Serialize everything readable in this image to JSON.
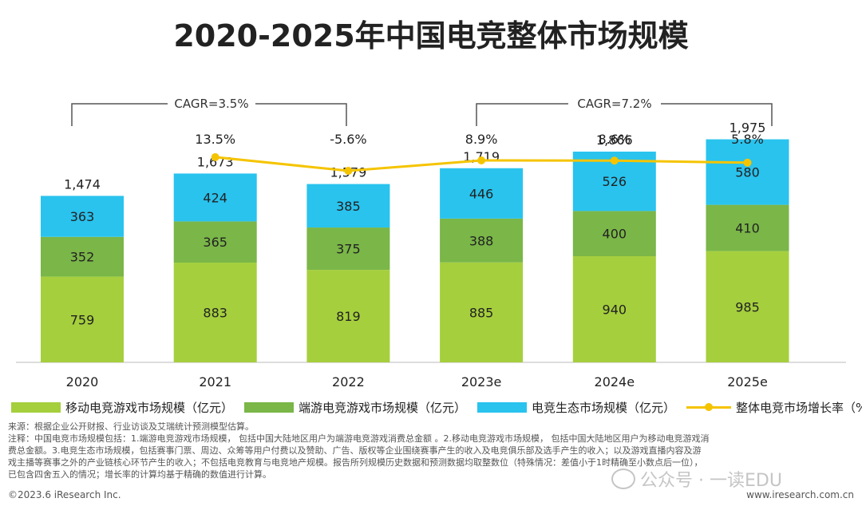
{
  "title": "2020-2025年中国电竞整体市场规模",
  "cagr_left": "CAGR=3.5%",
  "cagr_right": "CAGR=7.2%",
  "chart_data": {
    "type": "bar",
    "stacked": true,
    "categories": [
      "2020",
      "2021",
      "2022",
      "2023e",
      "2024e",
      "2025e"
    ],
    "series": [
      {
        "name": "移动电竞游戏市场规模（亿元）",
        "values": [
          759,
          883,
          819,
          885,
          940,
          985
        ],
        "color": "#a5cf3d"
      },
      {
        "name": "端游电竞游戏市场规模（亿元）",
        "values": [
          352,
          365,
          375,
          388,
          400,
          410
        ],
        "color": "#7ab648"
      },
      {
        "name": "电竞生态市场规模（亿元）",
        "values": [
          363,
          424,
          385,
          446,
          526,
          580
        ],
        "color": "#29c3ee"
      }
    ],
    "totals": [
      "1,474",
      "1,673",
      "1,579",
      "1,719",
      "1,866",
      "1,975"
    ],
    "line_series": {
      "name": "整体电竞市场增长率（%）",
      "categories": [
        "2021",
        "2022",
        "2023e",
        "2024e",
        "2025e"
      ],
      "values": [
        13.5,
        -5.6,
        8.9,
        8.6,
        5.8
      ],
      "labels": [
        "13.5%",
        "-5.6%",
        "8.9%",
        "8.6%",
        "5.8%"
      ],
      "color": "#f5c400"
    }
  },
  "legend": {
    "mobile": "移动电竞游戏市场规模（亿元）",
    "pc": "端游电竞游戏市场规模（亿元）",
    "eco": "电竞生态市场规模（亿元）",
    "growth": "整体电竞市场增长率（%）"
  },
  "notes": [
    "来源：根据企业公开财报、行业访谈及艾瑞统计预测模型估算。",
    "注释：中国电竞市场规模包括：1.端游电竞游戏市场规模， 包括中国大陆地区用户为端游电竞游戏消费总金额 。2.移动电竞游戏市场规模， 包括中国大陆地区用户为移动电竞游戏消",
    "费总金额。3.电竞生态市场规模，包括赛事门票、周边、众筹等用户付费以及赞助、广告、版权等企业围绕赛事产生的收入及电竞俱乐部及选手产生的收入；以及游戏直播内容及游",
    "戏主播等赛事之外的产业链核心环节产生的收入；不包括电竞教育与电竞地产规模。报告所列规模历史数据和预测数据均取整数位（特殊情况：差值小于1时精确至小数点后一位），",
    "已包含四舍五入的情况；增长率的计算均基于精确的数值进行计算。"
  ],
  "footer_left": "©2023.6 iResearch Inc.",
  "footer_right": "www.iresearch.com.cn",
  "watermark": "公众号 · 一读EDU"
}
